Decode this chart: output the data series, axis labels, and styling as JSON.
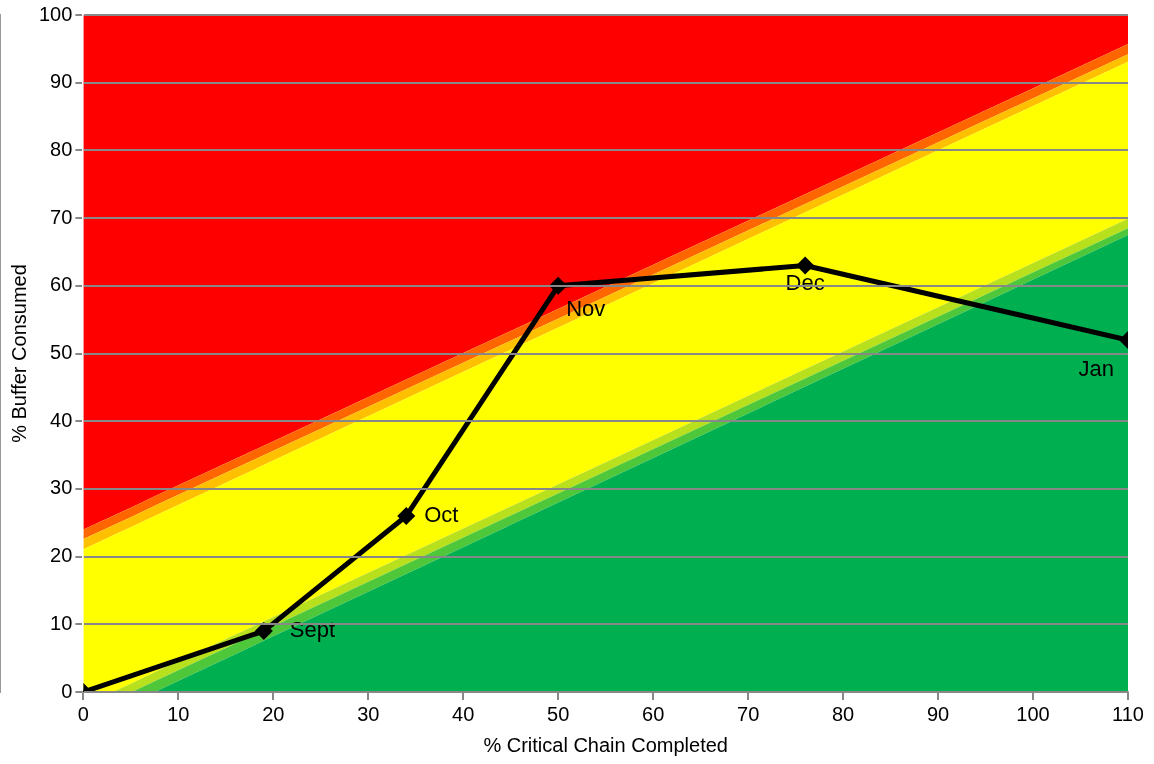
{
  "chart_data": {
    "type": "line",
    "xlabel": "% Critical Chain Completed",
    "ylabel": "% Buffer Consumed",
    "xlim": [
      0,
      110
    ],
    "xticks": [
      0,
      10,
      20,
      30,
      40,
      50,
      60,
      70,
      80,
      90,
      100,
      110
    ],
    "ylim": [
      0,
      100
    ],
    "yticks": [
      0,
      10,
      20,
      30,
      40,
      50,
      60,
      70,
      80,
      90,
      100
    ],
    "grid": "y",
    "legend": false,
    "stacked": true,
    "x": [
      0,
      3.1,
      5.1,
      7.5,
      110
    ],
    "series": [
      {
        "type": "area",
        "color": "#00b050",
        "values": [
          0,
          0,
          0,
          0,
          67.5
        ]
      },
      {
        "type": "area",
        "color": "#4ec83a",
        "values": [
          0,
          0,
          0,
          1.6,
          1
        ]
      },
      {
        "type": "area",
        "color": "#b8e01c",
        "values": [
          0,
          0,
          1.3,
          1.3,
          1.4
        ]
      },
      {
        "type": "area",
        "color": "#ffff00",
        "values": [
          21.1,
          23.1,
          23.1,
          23.1,
          23.2
        ]
      },
      {
        "type": "area",
        "color": "#ffc000",
        "values": [
          1.5,
          1.5,
          1.5,
          1.5,
          1.1
        ]
      },
      {
        "type": "area",
        "color": "#ff6600",
        "values": [
          1.4,
          1.4,
          1.4,
          1.4,
          1.5
        ]
      },
      {
        "type": "area",
        "color": "#ff0000",
        "values": [
          76,
          74,
          72.7,
          71.1,
          4.3
        ]
      },
      {
        "type": "line",
        "color": "#000000",
        "marker": "diamond",
        "x": [
          0,
          19,
          34,
          50,
          76,
          110
        ],
        "values": [
          0,
          9,
          26,
          60,
          63,
          52
        ]
      }
    ],
    "annotations": [
      {
        "text": "Sept",
        "x": 19,
        "y": 9
      },
      {
        "text": "Oct",
        "x": 34,
        "y": 26
      },
      {
        "text": "Nov",
        "x": 50,
        "y": 60
      },
      {
        "text": "Dec",
        "x": 76,
        "y": 63
      },
      {
        "text": "Jan",
        "x": 110,
        "y": 52
      }
    ]
  }
}
